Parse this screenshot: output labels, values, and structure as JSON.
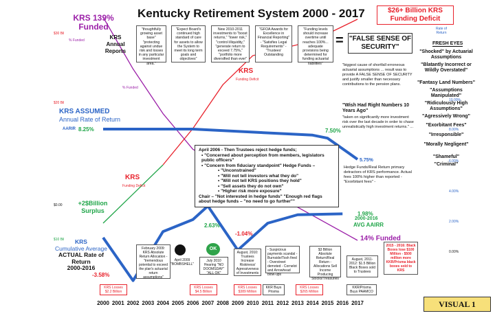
{
  "title": "Kentucky Retirement System 2000 - 2017",
  "top_left_label": "KRS 139% Funded",
  "funded_small_label": "% Funded",
  "annual_reports": "KRS Annual Reports",
  "quotes": [
    "\"thoughtfully growing asset base\" \"protecting against undue risk and losses in any particular investment area.\"",
    "\"Expect Board's continued high standard of care for assets to allow the System to meet its long term goals and objectives\"",
    "New 2010-2011 investments to \"boost returns,\" \"lower risk,\" \"control illiquidity,\" \"generate return to exceed 7.75%,\" \"portfolio more diversified than ever\"",
    "\"GFOA Awards for Excellence in Financial Reporting\" - \"Satisfies Legal Requirements\" - \"Trustees' Outstanding",
    "\"Funding levels should increase overtime until reaches 100%... adequate provisions being determined for funding actuarial liabilities\""
  ],
  "deficit_box": "$26+ Billion KRS Funding Deficit",
  "rate_of_return_label": "Rate of Return",
  "false_sense": "\"FALSE SENSE OF SECURITY\"",
  "fresh_eyes": "FRESH EYES",
  "fresh_eyes_items": [
    "\"Shocked\" by Actuarial Assumptions",
    "\"Blatantly Incorrect or Wildly Overstated\"",
    "\"Fantasy Land Numbers\"",
    "\"Assumptions Manipulated\"",
    "\"Ridiculously High Assumptions\"",
    "\"Agressively Wrong\"",
    "\"Exorbitant Fees\"",
    "\"Irresponsible\"",
    "\"Morally Negligent\"",
    "\"Shameful\"",
    "\"Criminal\""
  ],
  "right_scale": [
    "10.00%",
    "8.00%",
    "6.00%",
    "4.00%",
    "2.00%",
    "0.00%"
  ],
  "left_scale": [
    "$30 Bil",
    "$20 Bil",
    "$0.00",
    "$10 Bil"
  ],
  "krs_deficit_label": "KRS",
  "funding_deficit_small": "Funding Deficit",
  "biggest_cause_text": "\"biggest cause of shortfall erroneous actuarial assumptions ... result was to provide A FALSE SENSE OF SECURITY and justify smaller than necessary contributions to the pension plans.",
  "wish_text": "\"Wish Had Right Numbers 10 Years Ago\"",
  "taken_text": "\"taken on significantly more investment risk over the last decade in order to chase unrealistically high investment returns.\" ...",
  "assumed_label_1": "KRS ASSUMED",
  "assumed_label_2": "Annual Rate of Return",
  "aarir_label": "AARIR",
  "rate_825": "8.25%",
  "rate_750": "7.50%",
  "rate_575": "5.75%",
  "hedge_box": {
    "line1": "April 2006 - Then Trustees reject hedge funds;",
    "items": [
      "\"Concerned about perception from members, legislators public officers\"",
      "\"Concern from fiduciary standpoint\" Hedge Funds –"
    ],
    "sub_items": [
      "\"Unconstrained\"",
      "\"Will not tell investors what they do\"",
      "\"Will not tell KRS positions they hold\"",
      "\"Sell assets they do not own\"",
      "\"Higher risk more exposure\""
    ],
    "chair": "Chair – \"Not interested in hedge funds\" \"Enough red flags about hedge funds – \"no need to go further\"\""
  },
  "hedge_real_text": "Hedge Funds/Real Return primary detractors of KRS performance. Actual fees 100% higher than reported - \"Exorbitant fees\" -",
  "krs_funding_label": "KRS",
  "surplus_label": "+2$Billion Surplus",
  "actual_label_1": "KRS",
  "actual_label_2": "Cumulative Average",
  "actual_label_3": "ACTUAL Rate of Return",
  "actual_label_4": "2000-2016",
  "rate_263": "2.63%",
  "rate_104": "-1.04%",
  "rate_198": "1.98%",
  "rate_198_sub": "2000-2016",
  "rate_198_sub2": "AVG AAIRR",
  "rate_358": "-3.58%",
  "funded_14": "14% Funded",
  "lower_boxes": [
    "February 2009: KRS Absolute Return Allocation - \"tremendous potential to exceed the plan's actuarial return assumptions\"",
    "April 2009 \"BOMBSHELL\"",
    "July 2010 Hearing \"NO DOOMSDAY\" \"ALL OK\"",
    "August, 2010: Trustees Increase Riskiness/ Agressiveness of Investments",
    "- Suspicious payments scandal - Burnside/Tosh fired - Overstreet demoted - Cornelot and Arrowhead blow-ups",
    "$3 Billion Absolute Return/Real Return - Allocations Sell Income Producing Stocks/Treasuries",
    "August, 2011-2012: $1.5 Billion Black Boxes sold to Trustees",
    "2015 - 2016: Black Boxes lose $100 Million - $500 million more KKR/Prisma black boxes sold to KRS"
  ],
  "ok_label": "OK",
  "losses": [
    "KRS Losses $2.2 Billion",
    "KRS Losses $4.5 Billion",
    "KRS Losses $389 Million",
    "KKR Buys Prisma",
    "KRS Losses $265 Million",
    "KKR/Prisma Buys PAAMCO"
  ],
  "visual_label": "VISUAL 1",
  "colors": {
    "red": "#e8202a",
    "green": "#1fa548",
    "blue": "#2b64c6",
    "purple": "#9b1fa8"
  },
  "chart_data": {
    "type": "line",
    "title": "Kentucky Retirement System 2000 - 2017",
    "x": [
      2000,
      2001,
      2002,
      2003,
      2004,
      2005,
      2006,
      2007,
      2008,
      2009,
      2010,
      2011,
      2012,
      2013,
      2014,
      2015,
      2016,
      2017
    ],
    "x_tick_labels": [
      "2000",
      "2001",
      "2002",
      "2003",
      "2004",
      "2005",
      "2006",
      "2007",
      "2008",
      "2009",
      "2010",
      "2011",
      "2012",
      "2013",
      "2014",
      "2015",
      "2016",
      "2017"
    ],
    "series": [
      {
        "name": "% Funded",
        "color": "#9b1fa8",
        "points": [
          [
            2000,
            139
          ],
          [
            2002,
            110
          ],
          [
            2004,
            85
          ],
          [
            2006,
            65
          ],
          [
            2017,
            14
          ]
        ]
      },
      {
        "name": "Funding Deficit",
        "color": "#e8202a",
        "points": [
          [
            2000,
            -2
          ],
          [
            2002,
            2
          ],
          [
            2004,
            6
          ],
          [
            2006,
            11
          ],
          [
            2008,
            17
          ],
          [
            2010,
            21
          ],
          [
            2012,
            22
          ],
          [
            2014,
            23
          ],
          [
            2016,
            25
          ],
          [
            2017,
            26
          ]
        ]
      },
      {
        "name": "AARIR",
        "color": "#2b64c6",
        "points": [
          [
            2000,
            8.25
          ],
          [
            2006,
            8.25
          ],
          [
            2014,
            7.75
          ],
          [
            2015,
            7.5
          ],
          [
            2017,
            5.75
          ]
        ]
      },
      {
        "name": "ACTUAL Rate of Return",
        "color": "#2b64c6",
        "points": [
          [
            2000,
            0
          ],
          [
            2002,
            -3.58
          ],
          [
            2004,
            0.5
          ],
          [
            2006,
            1.5
          ],
          [
            2007,
            2.63
          ],
          [
            2009,
            -1.04
          ],
          [
            2011,
            1.2
          ],
          [
            2013,
            1.9
          ],
          [
            2016,
            1.98
          ]
        ]
      }
    ],
    "annotations": [
      "8.25%",
      "7.50%",
      "5.75%",
      "2.63%",
      "-1.04%",
      "1.98%",
      "-3.58%",
      "14% Funded"
    ]
  }
}
